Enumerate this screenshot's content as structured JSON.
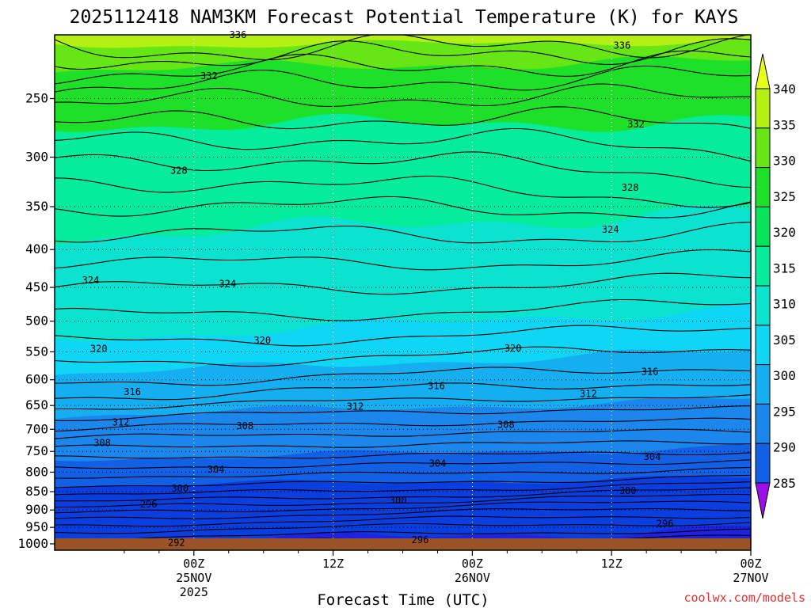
{
  "title": "2025112418 NAM3KM Forecast Potential Temperature (K) for KAYS",
  "credit": "coolwx.com/models",
  "colors": {
    "ground": "#9a5227",
    "bands": [
      "#9a10e8",
      "#5418e6",
      "#1f22e2",
      "#0a3ee0",
      "#1160e6",
      "#1b86ec",
      "#15aef0",
      "#0ed6f4",
      "#0be2d0",
      "#05ec9c",
      "#08e45a",
      "#1ee028",
      "#66e614",
      "#b4f014",
      "#e8ff1c"
    ]
  },
  "chart_data": {
    "type": "heatmap",
    "subtype": "time-height contour (filled)",
    "title": "2025112418 NAM3KM Forecast Potential Temperature (K) for KAYS",
    "xlabel": "Forecast Time (UTC)",
    "ylabel": "",
    "y_scale": "log",
    "y_inverted": true,
    "y_range_hPa": [
      1020,
      205
    ],
    "x_range_hours": [
      -6,
      54
    ],
    "y_ticks": [
      250,
      300,
      350,
      400,
      450,
      500,
      550,
      600,
      650,
      700,
      750,
      800,
      850,
      900,
      950,
      1000
    ],
    "x_ticks": [
      {
        "hour": 6,
        "label": "00Z",
        "label2": "25NOV",
        "label3": "2025"
      },
      {
        "hour": 18,
        "label": "12Z",
        "label2": "",
        "label3": ""
      },
      {
        "hour": 30,
        "label": "00Z",
        "label2": "26NOV",
        "label3": ""
      },
      {
        "hour": 42,
        "label": "12Z",
        "label2": "",
        "label3": ""
      },
      {
        "hour": 54,
        "label": "00Z",
        "label2": "27NOV",
        "label3": ""
      }
    ],
    "colorbar": {
      "levels": [
        285,
        290,
        295,
        300,
        305,
        310,
        315,
        320,
        325,
        330,
        335,
        340
      ],
      "extend": "both"
    },
    "contour_interval_K": 4,
    "contour_labels": [
      {
        "value": 336,
        "hour": 9.8,
        "p": 205
      },
      {
        "value": 336,
        "hour": 42.9,
        "p": 212
      },
      {
        "value": 332,
        "hour": 7.3,
        "p": 233
      },
      {
        "value": 332,
        "hour": 44.1,
        "p": 271
      },
      {
        "value": 328,
        "hour": 4.7,
        "p": 313
      },
      {
        "value": 328,
        "hour": 43.6,
        "p": 330
      },
      {
        "value": 324,
        "hour": 41.9,
        "p": 376
      },
      {
        "value": 324,
        "hour": -2.9,
        "p": 440
      },
      {
        "value": 324,
        "hour": 8.9,
        "p": 445
      },
      {
        "value": 320,
        "hour": 11.9,
        "p": 531
      },
      {
        "value": 320,
        "hour": -2.2,
        "p": 545
      },
      {
        "value": 320,
        "hour": 33.5,
        "p": 544
      },
      {
        "value": 316,
        "hour": 45.3,
        "p": 585
      },
      {
        "value": 316,
        "hour": 26.9,
        "p": 612
      },
      {
        "value": 316,
        "hour": 0.7,
        "p": 623
      },
      {
        "value": 312,
        "hour": 40.0,
        "p": 627
      },
      {
        "value": 312,
        "hour": 19.9,
        "p": 652
      },
      {
        "value": 312,
        "hour": -0.3,
        "p": 685
      },
      {
        "value": 308,
        "hour": 10.4,
        "p": 693
      },
      {
        "value": 308,
        "hour": 32.9,
        "p": 690
      },
      {
        "value": 308,
        "hour": -1.9,
        "p": 730
      },
      {
        "value": 304,
        "hour": 45.5,
        "p": 763
      },
      {
        "value": 304,
        "hour": 27.0,
        "p": 779
      },
      {
        "value": 304,
        "hour": 7.9,
        "p": 793
      },
      {
        "value": 300,
        "hour": 4.8,
        "p": 842
      },
      {
        "value": 300,
        "hour": 43.4,
        "p": 848
      },
      {
        "value": 300,
        "hour": 23.6,
        "p": 873
      },
      {
        "value": 296,
        "hour": 2.1,
        "p": 884
      },
      {
        "value": 296,
        "hour": 46.6,
        "p": 939
      },
      {
        "value": 296,
        "hour": 25.5,
        "p": 988
      },
      {
        "value": 292,
        "hour": 4.5,
        "p": 997
      }
    ]
  }
}
